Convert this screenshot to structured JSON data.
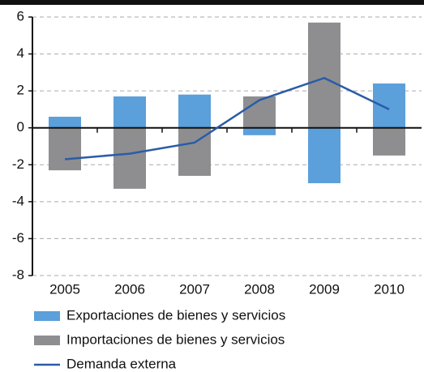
{
  "chart_data": {
    "type": "bar-line",
    "categories": [
      "2005",
      "2006",
      "2007",
      "2008",
      "2009",
      "2010"
    ],
    "series": [
      {
        "name": "Exportaciones de bienes y servicios",
        "type": "bar",
        "color": "#5b9fdb",
        "values": [
          0.6,
          1.7,
          1.8,
          -0.4,
          -3.0,
          2.4
        ]
      },
      {
        "name": "Importaciones de bienes y servicios",
        "type": "bar",
        "color": "#8e8e90",
        "values": [
          -2.3,
          -3.3,
          -2.6,
          1.7,
          5.7,
          -1.5
        ]
      },
      {
        "name": "Demanda externa",
        "type": "line",
        "color": "#2a5ca8",
        "values": [
          -1.7,
          -1.4,
          -0.8,
          1.5,
          2.7,
          1.0
        ]
      }
    ],
    "ylim": [
      -8,
      6
    ],
    "yticks": [
      -8,
      -6,
      -4,
      -2,
      0,
      2,
      4,
      6
    ],
    "grid": true
  }
}
